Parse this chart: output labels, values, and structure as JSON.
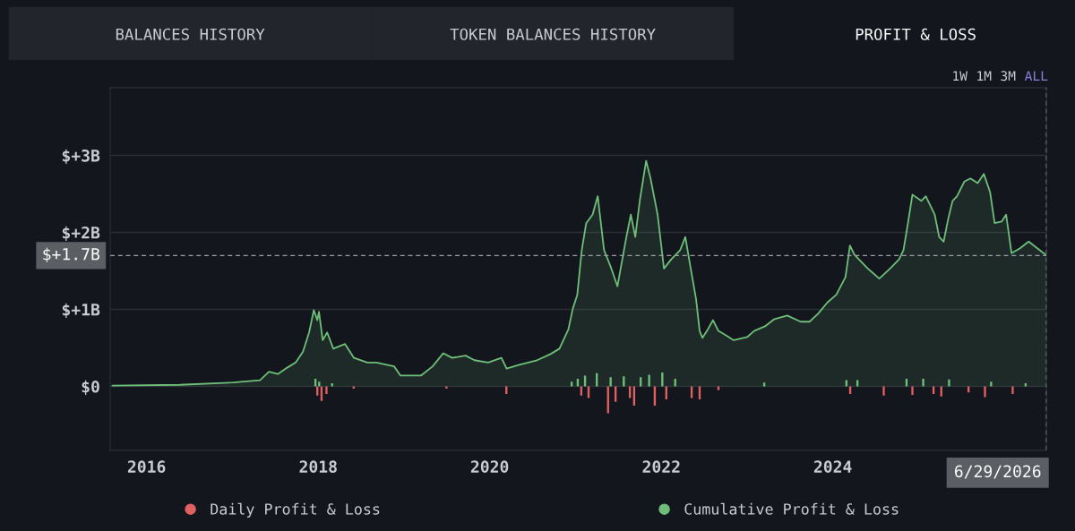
{
  "chart_data": {
    "type": "area",
    "annotations": [
      "BALANCES HISTORY",
      "TOKEN BALANCES HISTORY",
      "PROFIT & LOSS",
      "1W",
      "1M",
      "3M",
      "ALL"
    ],
    "xlim": [
      "2015-07-30",
      "2026-06-29"
    ],
    "xticks": [
      {
        "value": "2016-01-01",
        "label": "2016"
      },
      {
        "value": "2018-01-01",
        "label": "2018"
      },
      {
        "value": "2020-01-01",
        "label": "2020"
      },
      {
        "value": "2022-01-01",
        "label": "2022"
      },
      {
        "value": "2024-01-01",
        "label": "2024"
      }
    ],
    "ylim": [
      -0.83,
      3.88
    ],
    "yticks": [
      {
        "value": 0,
        "label": "$0"
      },
      {
        "value": 1,
        "label": "$+1B"
      },
      {
        "value": 2,
        "label": "$+2B"
      },
      {
        "value": 3,
        "label": "$+3B"
      }
    ],
    "grid": "y",
    "legend": "bottom",
    "ref_lines": [
      {
        "axis": "y",
        "value": 1.7,
        "label": "$+1.7B",
        "color": "#9a9da3",
        "line_style": "dashed"
      },
      {
        "axis": "x",
        "value": "2026-06-29",
        "label": "6/29/2026",
        "color": "#9a9da3",
        "line_style": "dashed"
      }
    ],
    "series": [
      {
        "name": "Daily Profit & Loss",
        "type": "bar",
        "color": "#e06161",
        "x": [
          "2017-12-20",
          "2017-12-28",
          "2018-01-05",
          "2018-01-15",
          "2018-02-05",
          "2018-03-01",
          "2018-06-01",
          "2019-07-01",
          "2020-03-12",
          "2020-12-15",
          "2021-01-10",
          "2021-01-25",
          "2021-02-10",
          "2021-02-25",
          "2021-04-01",
          "2021-05-19",
          "2021-05-30",
          "2021-06-20",
          "2021-07-25",
          "2021-08-20",
          "2021-09-07",
          "2021-10-05",
          "2021-11-10",
          "2021-12-04",
          "2022-01-05",
          "2022-01-22",
          "2022-03-01",
          "2022-05-10",
          "2022-06-13",
          "2022-09-01",
          "2023-03-15",
          "2024-02-28",
          "2024-03-15",
          "2024-04-15",
          "2024-08-05",
          "2024-11-10",
          "2024-12-05",
          "2025-01-20",
          "2025-03-05",
          "2025-04-07",
          "2025-05-10",
          "2025-08-01",
          "2025-10-10",
          "2025-11-05",
          "2026-02-05",
          "2026-04-01"
        ],
        "values": [
          0.1,
          -0.12,
          0.06,
          -0.19,
          -0.1,
          0.04,
          -0.03,
          -0.03,
          -0.1,
          0.06,
          0.1,
          -0.12,
          0.14,
          -0.15,
          0.17,
          -0.35,
          0.12,
          -0.2,
          0.13,
          -0.15,
          -0.25,
          0.12,
          0.15,
          -0.25,
          0.18,
          -0.17,
          0.1,
          -0.15,
          -0.17,
          -0.05,
          0.05,
          0.08,
          -0.1,
          0.08,
          -0.12,
          0.1,
          -0.11,
          0.1,
          -0.1,
          -0.13,
          0.09,
          -0.08,
          -0.14,
          0.06,
          -0.1,
          0.04
        ],
        "colors": [
          "#6fbf7a",
          "#e06161",
          "#6fbf7a",
          "#e06161",
          "#e06161",
          "#6fbf7a",
          "#e06161",
          "#e06161",
          "#e06161",
          "#6fbf7a",
          "#6fbf7a",
          "#e06161",
          "#6fbf7a",
          "#e06161",
          "#6fbf7a",
          "#e06161",
          "#6fbf7a",
          "#e06161",
          "#6fbf7a",
          "#e06161",
          "#e06161",
          "#6fbf7a",
          "#6fbf7a",
          "#e06161",
          "#6fbf7a",
          "#e06161",
          "#6fbf7a",
          "#e06161",
          "#e06161",
          "#e06161",
          "#6fbf7a",
          "#6fbf7a",
          "#e06161",
          "#6fbf7a",
          "#e06161",
          "#6fbf7a",
          "#e06161",
          "#6fbf7a",
          "#e06161",
          "#e06161",
          "#6fbf7a",
          "#e06161",
          "#e06161",
          "#6fbf7a",
          "#e06161",
          "#6fbf7a"
        ]
      },
      {
        "name": "Cumulative Profit & Loss",
        "color": "#6fbf7a",
        "x": [
          "2015-08-09",
          "2016-05-21",
          "2017-01-04",
          "2017-04-28",
          "2017-06-05",
          "2017-07-13",
          "2017-08-20",
          "2017-09-27",
          "2017-10-28",
          "2017-11-23",
          "2017-12-13",
          "2017-12-28",
          "2018-01-04",
          "2018-01-20",
          "2018-02-08",
          "2018-03-06",
          "2018-04-25",
          "2018-06-02",
          "2018-07-29",
          "2018-09-05",
          "2018-11-20",
          "2018-12-17",
          "2019-03-14",
          "2019-05-03",
          "2019-06-17",
          "2019-07-25",
          "2019-09-20",
          "2019-10-28",
          "2019-12-25",
          "2020-02-20",
          "2020-03-13",
          "2020-05-06",
          "2020-07-21",
          "2020-09-16",
          "2020-10-24",
          "2020-12-01",
          "2020-12-20",
          "2021-01-08",
          "2021-01-27",
          "2021-02-15",
          "2021-03-14",
          "2021-04-05",
          "2021-05-02",
          "2021-06-02",
          "2021-06-28",
          "2021-08-05",
          "2021-08-24",
          "2021-09-12",
          "2021-10-01",
          "2021-10-28",
          "2021-11-16",
          "2021-12-16",
          "2022-01-12",
          "2022-02-12",
          "2022-03-22",
          "2022-04-13",
          "2022-05-06",
          "2022-05-29",
          "2022-06-13",
          "2022-06-25",
          "2022-07-14",
          "2022-08-09",
          "2022-09-01",
          "2022-10-05",
          "2022-11-05",
          "2023-01-01",
          "2023-01-31",
          "2023-03-18",
          "2023-04-25",
          "2023-06-21",
          "2023-08-17",
          "2023-09-24",
          "2023-11-01",
          "2023-12-09",
          "2024-01-16",
          "2024-02-24",
          "2024-03-14",
          "2024-04-02",
          "2024-04-21",
          "2024-05-29",
          "2024-06-17",
          "2024-07-17",
          "2024-09-01",
          "2024-10-09",
          "2024-10-28",
          "2024-11-16",
          "2024-12-05",
          "2025-01-12",
          "2025-01-31",
          "2025-03-10",
          "2025-03-29",
          "2025-04-17",
          "2025-05-06",
          "2025-05-25",
          "2025-06-13",
          "2025-07-14",
          "2025-08-09",
          "2025-09-09",
          "2025-10-05",
          "2025-11-01",
          "2025-11-20",
          "2025-12-20",
          "2026-01-08",
          "2026-01-31",
          "2026-03-07",
          "2026-04-14",
          "2026-05-22",
          "2026-06-29"
        ],
        "values": [
          0.01,
          0.02,
          0.05,
          0.08,
          0.19,
          0.16,
          0.24,
          0.31,
          0.45,
          0.7,
          0.99,
          0.86,
          0.97,
          0.6,
          0.7,
          0.49,
          0.55,
          0.37,
          0.31,
          0.31,
          0.26,
          0.14,
          0.14,
          0.26,
          0.43,
          0.37,
          0.4,
          0.34,
          0.31,
          0.37,
          0.23,
          0.28,
          0.34,
          0.42,
          0.49,
          0.74,
          1.01,
          1.19,
          1.77,
          2.12,
          2.23,
          2.47,
          1.77,
          1.53,
          1.3,
          1.94,
          2.23,
          1.94,
          2.41,
          2.93,
          2.7,
          2.23,
          1.53,
          1.65,
          1.77,
          1.94,
          1.53,
          1.13,
          0.72,
          0.63,
          0.72,
          0.86,
          0.72,
          0.66,
          0.6,
          0.64,
          0.72,
          0.78,
          0.87,
          0.92,
          0.84,
          0.84,
          0.95,
          1.09,
          1.19,
          1.42,
          1.83,
          1.71,
          1.65,
          1.53,
          1.48,
          1.4,
          1.53,
          1.65,
          1.77,
          2.12,
          2.49,
          2.41,
          2.47,
          2.23,
          1.94,
          1.88,
          2.17,
          2.41,
          2.47,
          2.66,
          2.7,
          2.64,
          2.76,
          2.52,
          2.12,
          2.14,
          2.23,
          1.73,
          1.79,
          1.88,
          1.79,
          1.7
        ]
      }
    ]
  }
}
